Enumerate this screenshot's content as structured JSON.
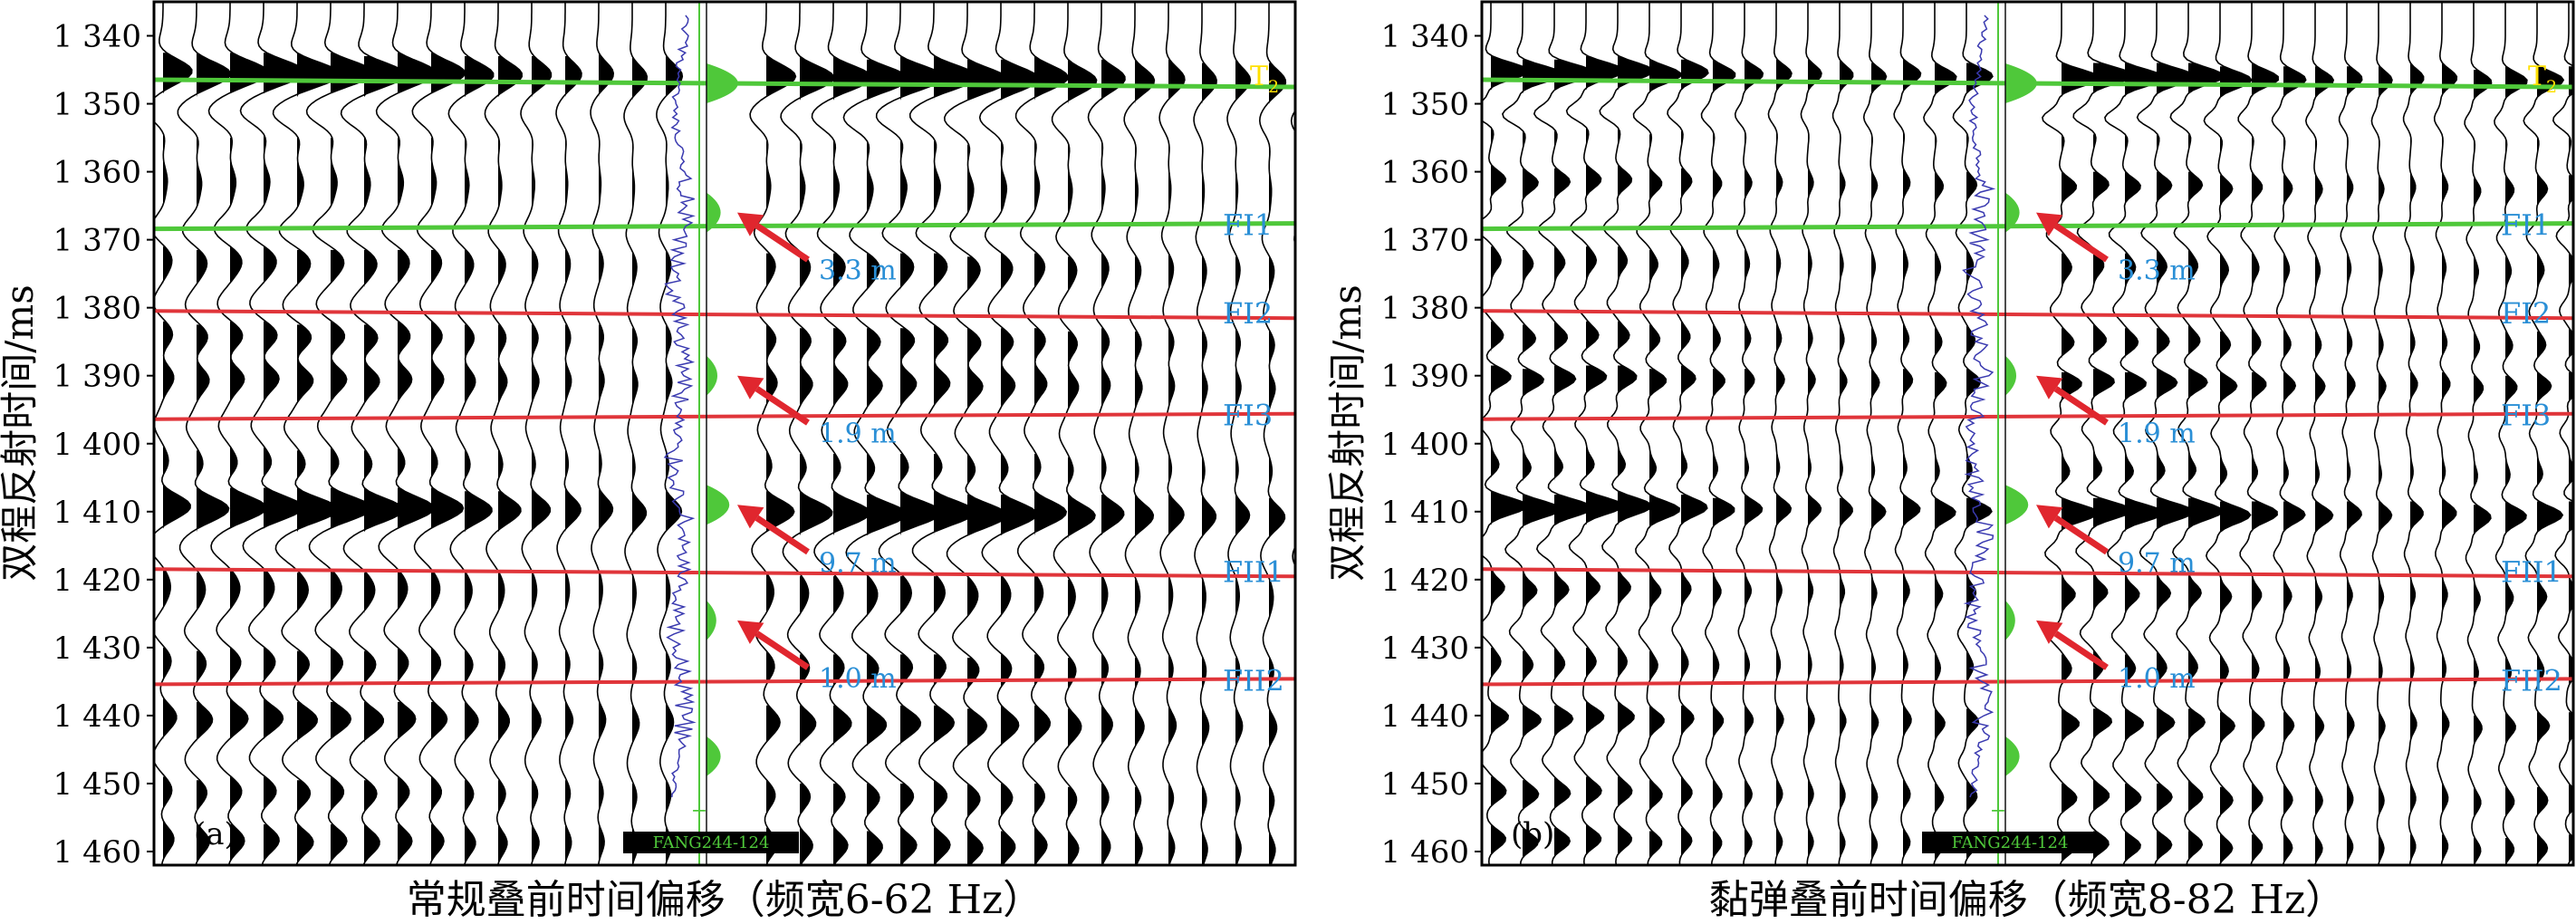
{
  "figure": {
    "y_axis_label": "双程反射时间/ms",
    "y_ticks": [
      "1 340",
      "1 350",
      "1 360",
      "1 370",
      "1 380",
      "1 390",
      "1 400",
      "1 410",
      "1 420",
      "1 430",
      "1 440",
      "1 450",
      "1 460"
    ],
    "y_range_ms": [
      1335,
      1462
    ],
    "colors": {
      "horizon_green": "#4fc83a",
      "horizon_red": "#e0353a",
      "label_blue": "#2a8fd6",
      "label_yellow": "#ffe000",
      "arrow_red": "#e0262e",
      "log_blue": "#3a3ab0"
    },
    "panels": [
      {
        "label": "(a)",
        "caption": "常规叠前时间偏移（频宽6-62 Hz）",
        "well_label": "FANG244-124",
        "bandwidth_hz": [
          6,
          62
        ],
        "horizons": [
          {
            "name": "T2",
            "name_main": "T",
            "name_sub": "2",
            "time_ms": 1347,
            "kind": "green"
          },
          {
            "name": "FI1",
            "time_ms": 1368,
            "kind": "green"
          },
          {
            "name": "FI2",
            "time_ms": 1381,
            "kind": "red"
          },
          {
            "name": "FI3",
            "time_ms": 1396,
            "kind": "red"
          },
          {
            "name": "FII1",
            "time_ms": 1419,
            "kind": "red"
          },
          {
            "name": "FII2",
            "time_ms": 1435,
            "kind": "red"
          }
        ],
        "annotations": [
          {
            "text": "3.3 m",
            "target_ms": 1366
          },
          {
            "text": "1.9 m",
            "target_ms": 1390
          },
          {
            "text": "9.7 m",
            "target_ms": 1409
          },
          {
            "text": "1.0 m",
            "target_ms": 1426
          }
        ]
      },
      {
        "label": "(b)",
        "caption": "黏弹叠前时间偏移（频宽8-82 Hz）",
        "well_label": "FANG244-124",
        "bandwidth_hz": [
          8,
          82
        ],
        "horizons": [
          {
            "name": "T2",
            "name_main": "T",
            "name_sub": "2",
            "time_ms": 1347,
            "kind": "green"
          },
          {
            "name": "FI1",
            "time_ms": 1368,
            "kind": "green"
          },
          {
            "name": "FI2",
            "time_ms": 1381,
            "kind": "red"
          },
          {
            "name": "FI3",
            "time_ms": 1396,
            "kind": "red"
          },
          {
            "name": "FII1",
            "time_ms": 1419,
            "kind": "red"
          },
          {
            "name": "FII2",
            "time_ms": 1435,
            "kind": "red"
          }
        ],
        "annotations": [
          {
            "text": "3.3 m",
            "target_ms": 1366
          },
          {
            "text": "1.9 m",
            "target_ms": 1390
          },
          {
            "text": "9.7 m",
            "target_ms": 1409
          },
          {
            "text": "1.0 m",
            "target_ms": 1426
          }
        ]
      }
    ]
  }
}
